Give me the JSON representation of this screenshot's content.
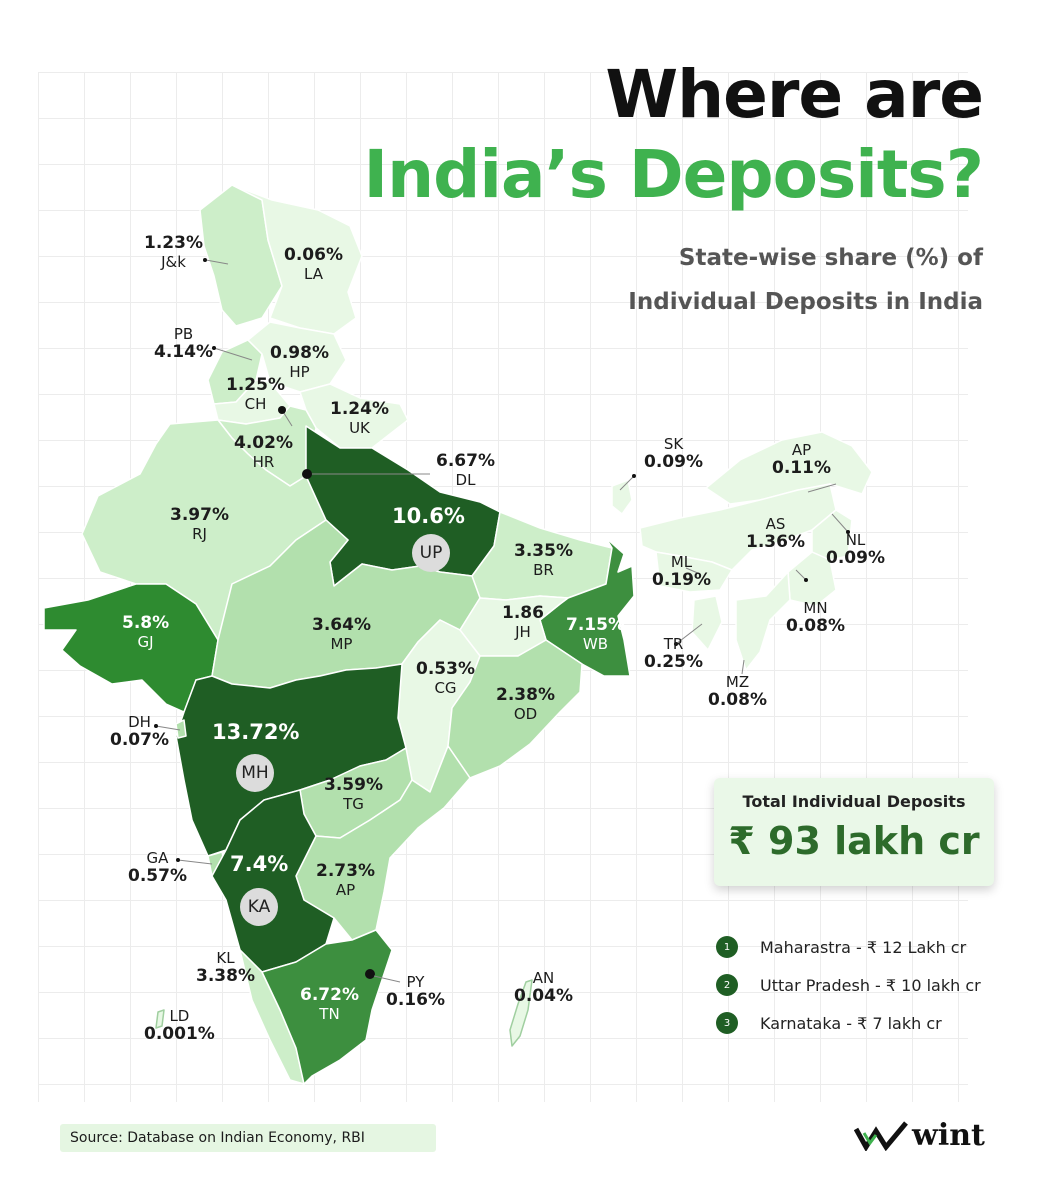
{
  "title": {
    "line1": "Where are",
    "line2": "India’s Deposits?"
  },
  "subtitle": {
    "line1": "State-wise share (%) of",
    "line2": "Individual Deposits in India"
  },
  "states": [
    {
      "id": "jk",
      "code": "J&k",
      "value": "1.23%"
    },
    {
      "id": "la",
      "code": "LA",
      "value": "0.06%"
    },
    {
      "id": "pb",
      "code": "PB",
      "value": "4.14%"
    },
    {
      "id": "hp",
      "code": "HP",
      "value": "0.98%"
    },
    {
      "id": "ch",
      "code": "CH",
      "value": "1.25%"
    },
    {
      "id": "uk",
      "code": "UK",
      "value": "1.24%"
    },
    {
      "id": "hr",
      "code": "HR",
      "value": "4.02%"
    },
    {
      "id": "dl",
      "code": "DL",
      "value": "6.67%"
    },
    {
      "id": "rj",
      "code": "RJ",
      "value": "3.97%"
    },
    {
      "id": "up",
      "code": "UP",
      "value": "10.6%"
    },
    {
      "id": "br",
      "code": "BR",
      "value": "3.35%"
    },
    {
      "id": "sk",
      "code": "SK",
      "value": "0.09%"
    },
    {
      "id": "ap_ne",
      "code": "AP",
      "value": "0.11%"
    },
    {
      "id": "as",
      "code": "AS",
      "value": "1.36%"
    },
    {
      "id": "nl",
      "code": "NL",
      "value": "0.09%"
    },
    {
      "id": "ml",
      "code": "ML",
      "value": "0.19%"
    },
    {
      "id": "mn",
      "code": "MN",
      "value": "0.08%"
    },
    {
      "id": "tr",
      "code": "TR",
      "value": "0.25%"
    },
    {
      "id": "mz",
      "code": "MZ",
      "value": "0.08%"
    },
    {
      "id": "gj",
      "code": "GJ",
      "value": "5.8%"
    },
    {
      "id": "mp",
      "code": "MP",
      "value": "3.64%"
    },
    {
      "id": "jh",
      "code": "JH",
      "value": "1.86"
    },
    {
      "id": "wb",
      "code": "WB",
      "value": "7.15%"
    },
    {
      "id": "cg",
      "code": "CG",
      "value": "0.53%"
    },
    {
      "id": "od",
      "code": "OD",
      "value": "2.38%"
    },
    {
      "id": "dh",
      "code": "DH",
      "value": "0.07%"
    },
    {
      "id": "mh",
      "code": "MH",
      "value": "13.72%"
    },
    {
      "id": "tg",
      "code": "TG",
      "value": "3.59%"
    },
    {
      "id": "ga",
      "code": "GA",
      "value": "0.57%"
    },
    {
      "id": "ka",
      "code": "KA",
      "value": "7.4%"
    },
    {
      "id": "ap",
      "code": "AP",
      "value": "2.73%"
    },
    {
      "id": "kl",
      "code": "KL",
      "value": "3.38%"
    },
    {
      "id": "tn",
      "code": "TN",
      "value": "6.72%"
    },
    {
      "id": "py",
      "code": "PY",
      "value": "0.16%"
    },
    {
      "id": "an",
      "code": "AN",
      "value": "0.04%"
    },
    {
      "id": "ld",
      "code": "LD",
      "value": "0.001%"
    }
  ],
  "colors": {
    "darkest": "#1f5e24",
    "dark": "#2e8b30",
    "mid": "#3d8f3f",
    "light": "#b2e0ad",
    "lighter": "#cdeec9",
    "lightest": "#e8f8e5",
    "accent": "#3fb24f"
  },
  "total": {
    "label": "Total Individual Deposits",
    "value": "₹ 93 lakh cr"
  },
  "top3": [
    {
      "rank": "1",
      "text": "Maharastra - ₹ 12 Lakh cr"
    },
    {
      "rank": "2",
      "text": "Uttar Pradesh - ₹ 10 lakh cr"
    },
    {
      "rank": "3",
      "text": "Karnataka - ₹ 7 lakh cr"
    }
  ],
  "source": "Source: Database on Indian Economy, RBI",
  "logo": {
    "text": "wint",
    "icon": "wint-logo-icon"
  }
}
